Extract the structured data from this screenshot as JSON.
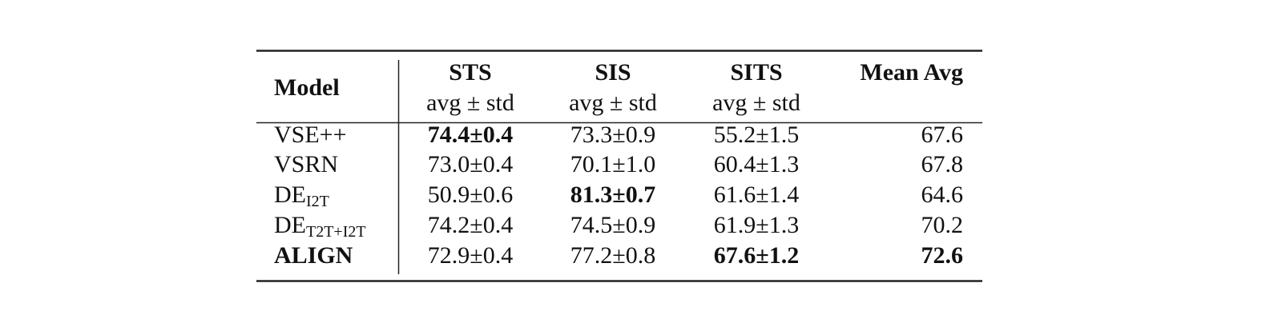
{
  "table": {
    "header": [
      "Model",
      "STS",
      "SIS",
      "SITS",
      "Mean Avg"
    ],
    "subheader": [
      "avg ± std",
      "avg ± std",
      "avg ± std"
    ],
    "rows": [
      {
        "model": "VSE++",
        "cells": [
          "74.4±0.4",
          "73.3±0.9",
          "55.2±1.5",
          "67.6"
        ],
        "bold_cells": [
          0
        ]
      },
      {
        "model": "VSRN",
        "cells": [
          "73.0±0.4",
          "70.1±1.0",
          "60.4±1.3",
          "67.8"
        ],
        "bold_cells": []
      },
      {
        "model": "DE",
        "model_sub": "I2T",
        "cells": [
          "50.9±0.6",
          "81.3±0.7",
          "61.6±1.4",
          "64.6"
        ],
        "bold_cells": [
          1
        ]
      },
      {
        "model": "DE",
        "model_sub": "T2T+I2T",
        "cells": [
          "74.2±0.4",
          "74.5±0.9",
          "61.9±1.3",
          "70.2"
        ],
        "bold_cells": []
      },
      {
        "model": "ALIGN",
        "model_bold": true,
        "cells": [
          "72.9±0.4",
          "77.2±0.8",
          "67.6±1.2",
          "72.6"
        ],
        "bold_cells": [
          2,
          3
        ]
      }
    ]
  }
}
